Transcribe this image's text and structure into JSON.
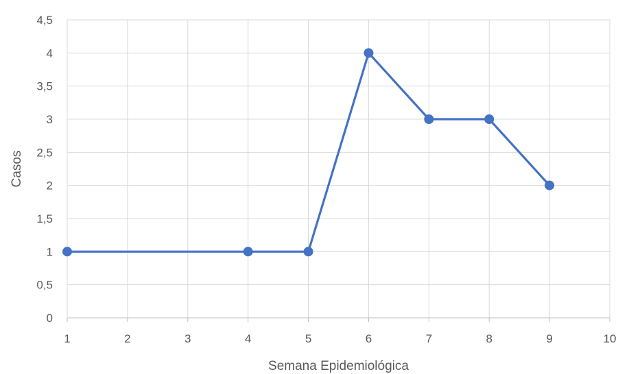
{
  "chart_data": {
    "type": "line",
    "title": "",
    "xlabel": "Semana Epidemiológica",
    "ylabel": "Casos",
    "xlim": [
      1,
      10
    ],
    "ylim": [
      0,
      4.5
    ],
    "x_ticks": [
      "1",
      "2",
      "3",
      "4",
      "5",
      "6",
      "7",
      "8",
      "9",
      "10"
    ],
    "y_ticks": [
      "0",
      "0,5",
      "1",
      "1,5",
      "2",
      "2,5",
      "3",
      "3,5",
      "4",
      "4,5"
    ],
    "grid": true,
    "legend": "none",
    "series": [
      {
        "x": [
          1,
          4,
          5,
          6,
          7,
          8,
          9
        ],
        "values": [
          1,
          1,
          1,
          4,
          3,
          3,
          2
        ],
        "color": "#4472C4",
        "marker": "circle"
      }
    ]
  }
}
